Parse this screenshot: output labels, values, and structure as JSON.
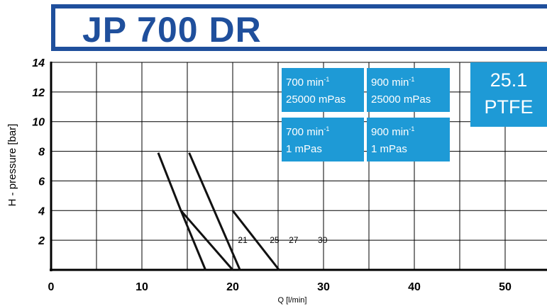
{
  "header": {
    "title": "JP 700 DR"
  },
  "badge": {
    "line1": "25.1",
    "line2": "PTFE"
  },
  "legend_boxes": [
    {
      "speed": "700 min",
      "exp": "-1",
      "viscosity": "25000 mPas"
    },
    {
      "speed": "900 min",
      "exp": "-1",
      "viscosity": "25000 mPas"
    },
    {
      "speed": "700 min",
      "exp": "-1",
      "viscosity": "1 mPas"
    },
    {
      "speed": "900 min",
      "exp": "-1",
      "viscosity": "1 mPas"
    }
  ],
  "colors": {
    "brand": "#1f4f9c",
    "accent": "#1e9ad6",
    "line": "#111111",
    "grid": "#000000"
  },
  "chart_data": {
    "type": "line",
    "xlabel": "Q [l/min]",
    "ylabel": "H - pressure [bar]",
    "xlim": [
      0,
      55
    ],
    "ylim": [
      0,
      14
    ],
    "x_ticks": [
      0,
      10,
      20,
      30,
      40,
      50
    ],
    "y_ticks": [
      2,
      4,
      6,
      8,
      10,
      12,
      14
    ],
    "y_tick_labels": [
      "2",
      "4",
      "6",
      "8",
      "10",
      "12",
      "14"
    ],
    "grid": true,
    "series": [
      {
        "values": [
          [
            11.8,
            7.9
          ],
          [
            14.3,
            4.0
          ],
          [
            20.0,
            0.0
          ]
        ]
      },
      {
        "values": [
          [
            14.3,
            4.0
          ],
          [
            17.0,
            0.0
          ]
        ]
      },
      {
        "values": [
          [
            15.2,
            7.9
          ],
          [
            20.8,
            0.0
          ]
        ]
      },
      {
        "values": [
          [
            20.0,
            4.0
          ],
          [
            25.1,
            0.0
          ]
        ]
      }
    ],
    "annotations": [
      {
        "text": "21",
        "x": 21.1,
        "y": 2.0
      },
      {
        "text": "25",
        "x": 24.6,
        "y": 2.0
      },
      {
        "text": "27",
        "x": 26.7,
        "y": 2.0
      },
      {
        "text": "30",
        "x": 29.9,
        "y": 2.0
      }
    ]
  }
}
